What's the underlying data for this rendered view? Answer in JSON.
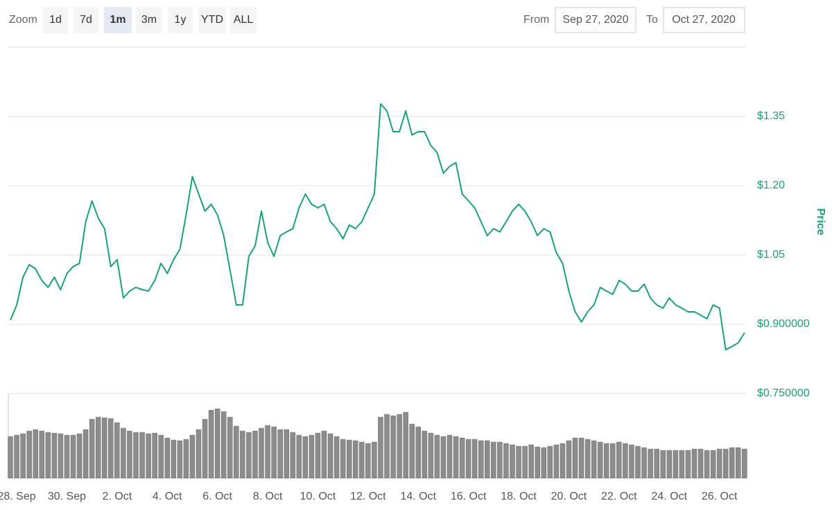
{
  "toolbar": {
    "zoom_label": "Zoom",
    "buttons": [
      "1d",
      "7d",
      "1m",
      "3m",
      "1y",
      "YTD",
      "ALL"
    ],
    "active": 2,
    "from_label": "From",
    "from_value": "Sep 27, 2020",
    "to_label": "To",
    "to_value": "Oct 27, 2020"
  },
  "chart_data": {
    "type": "line",
    "y_label": "Price",
    "color": "#16a279",
    "grid": true,
    "ylim": [
      0.75,
      1.5
    ],
    "yticks": [
      {
        "value": 0.75,
        "label": "$0.750000"
      },
      {
        "value": 0.9,
        "label": "$0.900000"
      },
      {
        "value": 1.05,
        "label": "$1.05"
      },
      {
        "value": 1.2,
        "label": "$1.20"
      },
      {
        "value": 1.35,
        "label": "$1.35"
      }
    ],
    "categories": [
      null,
      "28. Sep",
      null,
      null,
      null,
      null,
      null,
      null,
      null,
      "30. Sep",
      null,
      null,
      null,
      null,
      null,
      null,
      null,
      "2. Oct",
      null,
      null,
      null,
      null,
      null,
      null,
      null,
      "4. Oct",
      null,
      null,
      null,
      null,
      null,
      null,
      null,
      "6. Oct",
      null,
      null,
      null,
      null,
      null,
      null,
      null,
      "8. Oct",
      null,
      null,
      null,
      null,
      null,
      null,
      null,
      "10. Oct",
      null,
      null,
      null,
      null,
      null,
      null,
      null,
      "12. Oct",
      null,
      null,
      null,
      null,
      null,
      null,
      null,
      "14. Oct",
      null,
      null,
      null,
      null,
      null,
      null,
      null,
      "16. Oct",
      null,
      null,
      null,
      null,
      null,
      null,
      null,
      "18. Oct",
      null,
      null,
      null,
      null,
      null,
      null,
      null,
      "20. Oct",
      null,
      null,
      null,
      null,
      null,
      null,
      null,
      "22. Oct",
      null,
      null,
      null,
      null,
      null,
      null,
      null,
      "24. Oct",
      null,
      null,
      null,
      null,
      null,
      null,
      null,
      "26. Oct",
      null,
      null,
      null,
      null
    ],
    "values": [
      0.909,
      0.942,
      1.002,
      1.029,
      1.02,
      0.995,
      0.98,
      1.002,
      0.975,
      1.01,
      1.025,
      1.032,
      1.122,
      1.167,
      1.13,
      1.107,
      1.025,
      1.04,
      0.957,
      0.972,
      0.98,
      0.975,
      0.972,
      0.995,
      1.032,
      1.01,
      1.04,
      1.062,
      1.137,
      1.22,
      1.182,
      1.145,
      1.16,
      1.137,
      1.092,
      1.017,
      0.942,
      0.942,
      1.047,
      1.07,
      1.145,
      1.077,
      1.047,
      1.092,
      1.1,
      1.107,
      1.152,
      1.182,
      1.16,
      1.152,
      1.16,
      1.122,
      1.107,
      1.085,
      1.115,
      1.107,
      1.122,
      1.152,
      1.182,
      1.377,
      1.362,
      1.317,
      1.317,
      1.362,
      1.31,
      1.317,
      1.317,
      1.287,
      1.272,
      1.227,
      1.242,
      1.25,
      1.182,
      1.167,
      1.152,
      1.122,
      1.092,
      1.107,
      1.1,
      1.122,
      1.145,
      1.16,
      1.145,
      1.122,
      1.092,
      1.107,
      1.1,
      1.055,
      1.032,
      0.972,
      0.927,
      0.905,
      0.927,
      0.942,
      0.98,
      0.972,
      0.965,
      0.995,
      0.987,
      0.972,
      0.972,
      0.987,
      0.957,
      0.942,
      0.935,
      0.957,
      0.942,
      0.935,
      0.927,
      0.927,
      0.92,
      0.912,
      0.942,
      0.935,
      0.845,
      0.852,
      0.86,
      0.882
    ],
    "volume": {
      "color": "#8c8c8c",
      "values": [
        60,
        62,
        64,
        68,
        70,
        68,
        66,
        65,
        64,
        62,
        62,
        64,
        70,
        85,
        88,
        87,
        86,
        80,
        72,
        68,
        66,
        66,
        64,
        65,
        62,
        58,
        55,
        54,
        56,
        62,
        70,
        85,
        98,
        100,
        96,
        88,
        75,
        68,
        66,
        68,
        72,
        76,
        74,
        70,
        70,
        66,
        62,
        60,
        62,
        65,
        68,
        64,
        60,
        56,
        55,
        54,
        52,
        50,
        52,
        88,
        92,
        90,
        92,
        95,
        78,
        74,
        68,
        65,
        62,
        60,
        62,
        60,
        58,
        56,
        56,
        54,
        54,
        52,
        52,
        50,
        48,
        46,
        46,
        48,
        45,
        44,
        46,
        48,
        50,
        54,
        58,
        58,
        56,
        54,
        52,
        50,
        50,
        52,
        50,
        48,
        46,
        44,
        42,
        42,
        40,
        40,
        40,
        40,
        40,
        42,
        42,
        40,
        40,
        42,
        42,
        44,
        44,
        42
      ]
    }
  }
}
